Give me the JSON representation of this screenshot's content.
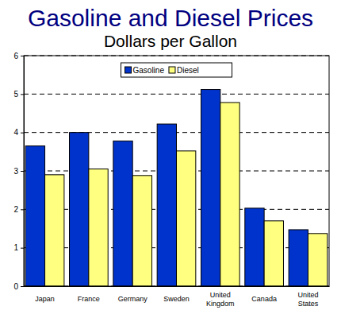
{
  "chart_data": {
    "type": "bar",
    "title": "Gasoline and Diesel Prices",
    "subtitle": "Dollars per Gallon",
    "categories": [
      "Japan",
      "France",
      "Germany",
      "Sweden",
      "United Kingdom",
      "Canada",
      "United States"
    ],
    "series": [
      {
        "name": "Gasoline",
        "color": "#0033cc",
        "values": [
          3.65,
          4.0,
          3.78,
          4.22,
          5.12,
          2.03,
          1.47
        ]
      },
      {
        "name": "Diesel",
        "color": "#ffff80",
        "values": [
          2.9,
          3.05,
          2.88,
          3.52,
          4.78,
          1.7,
          1.37
        ]
      }
    ],
    "ylim": [
      0,
      6
    ],
    "yticks": [
      0,
      1,
      2,
      3,
      4,
      5,
      6
    ],
    "grid": true,
    "legend": "top"
  }
}
